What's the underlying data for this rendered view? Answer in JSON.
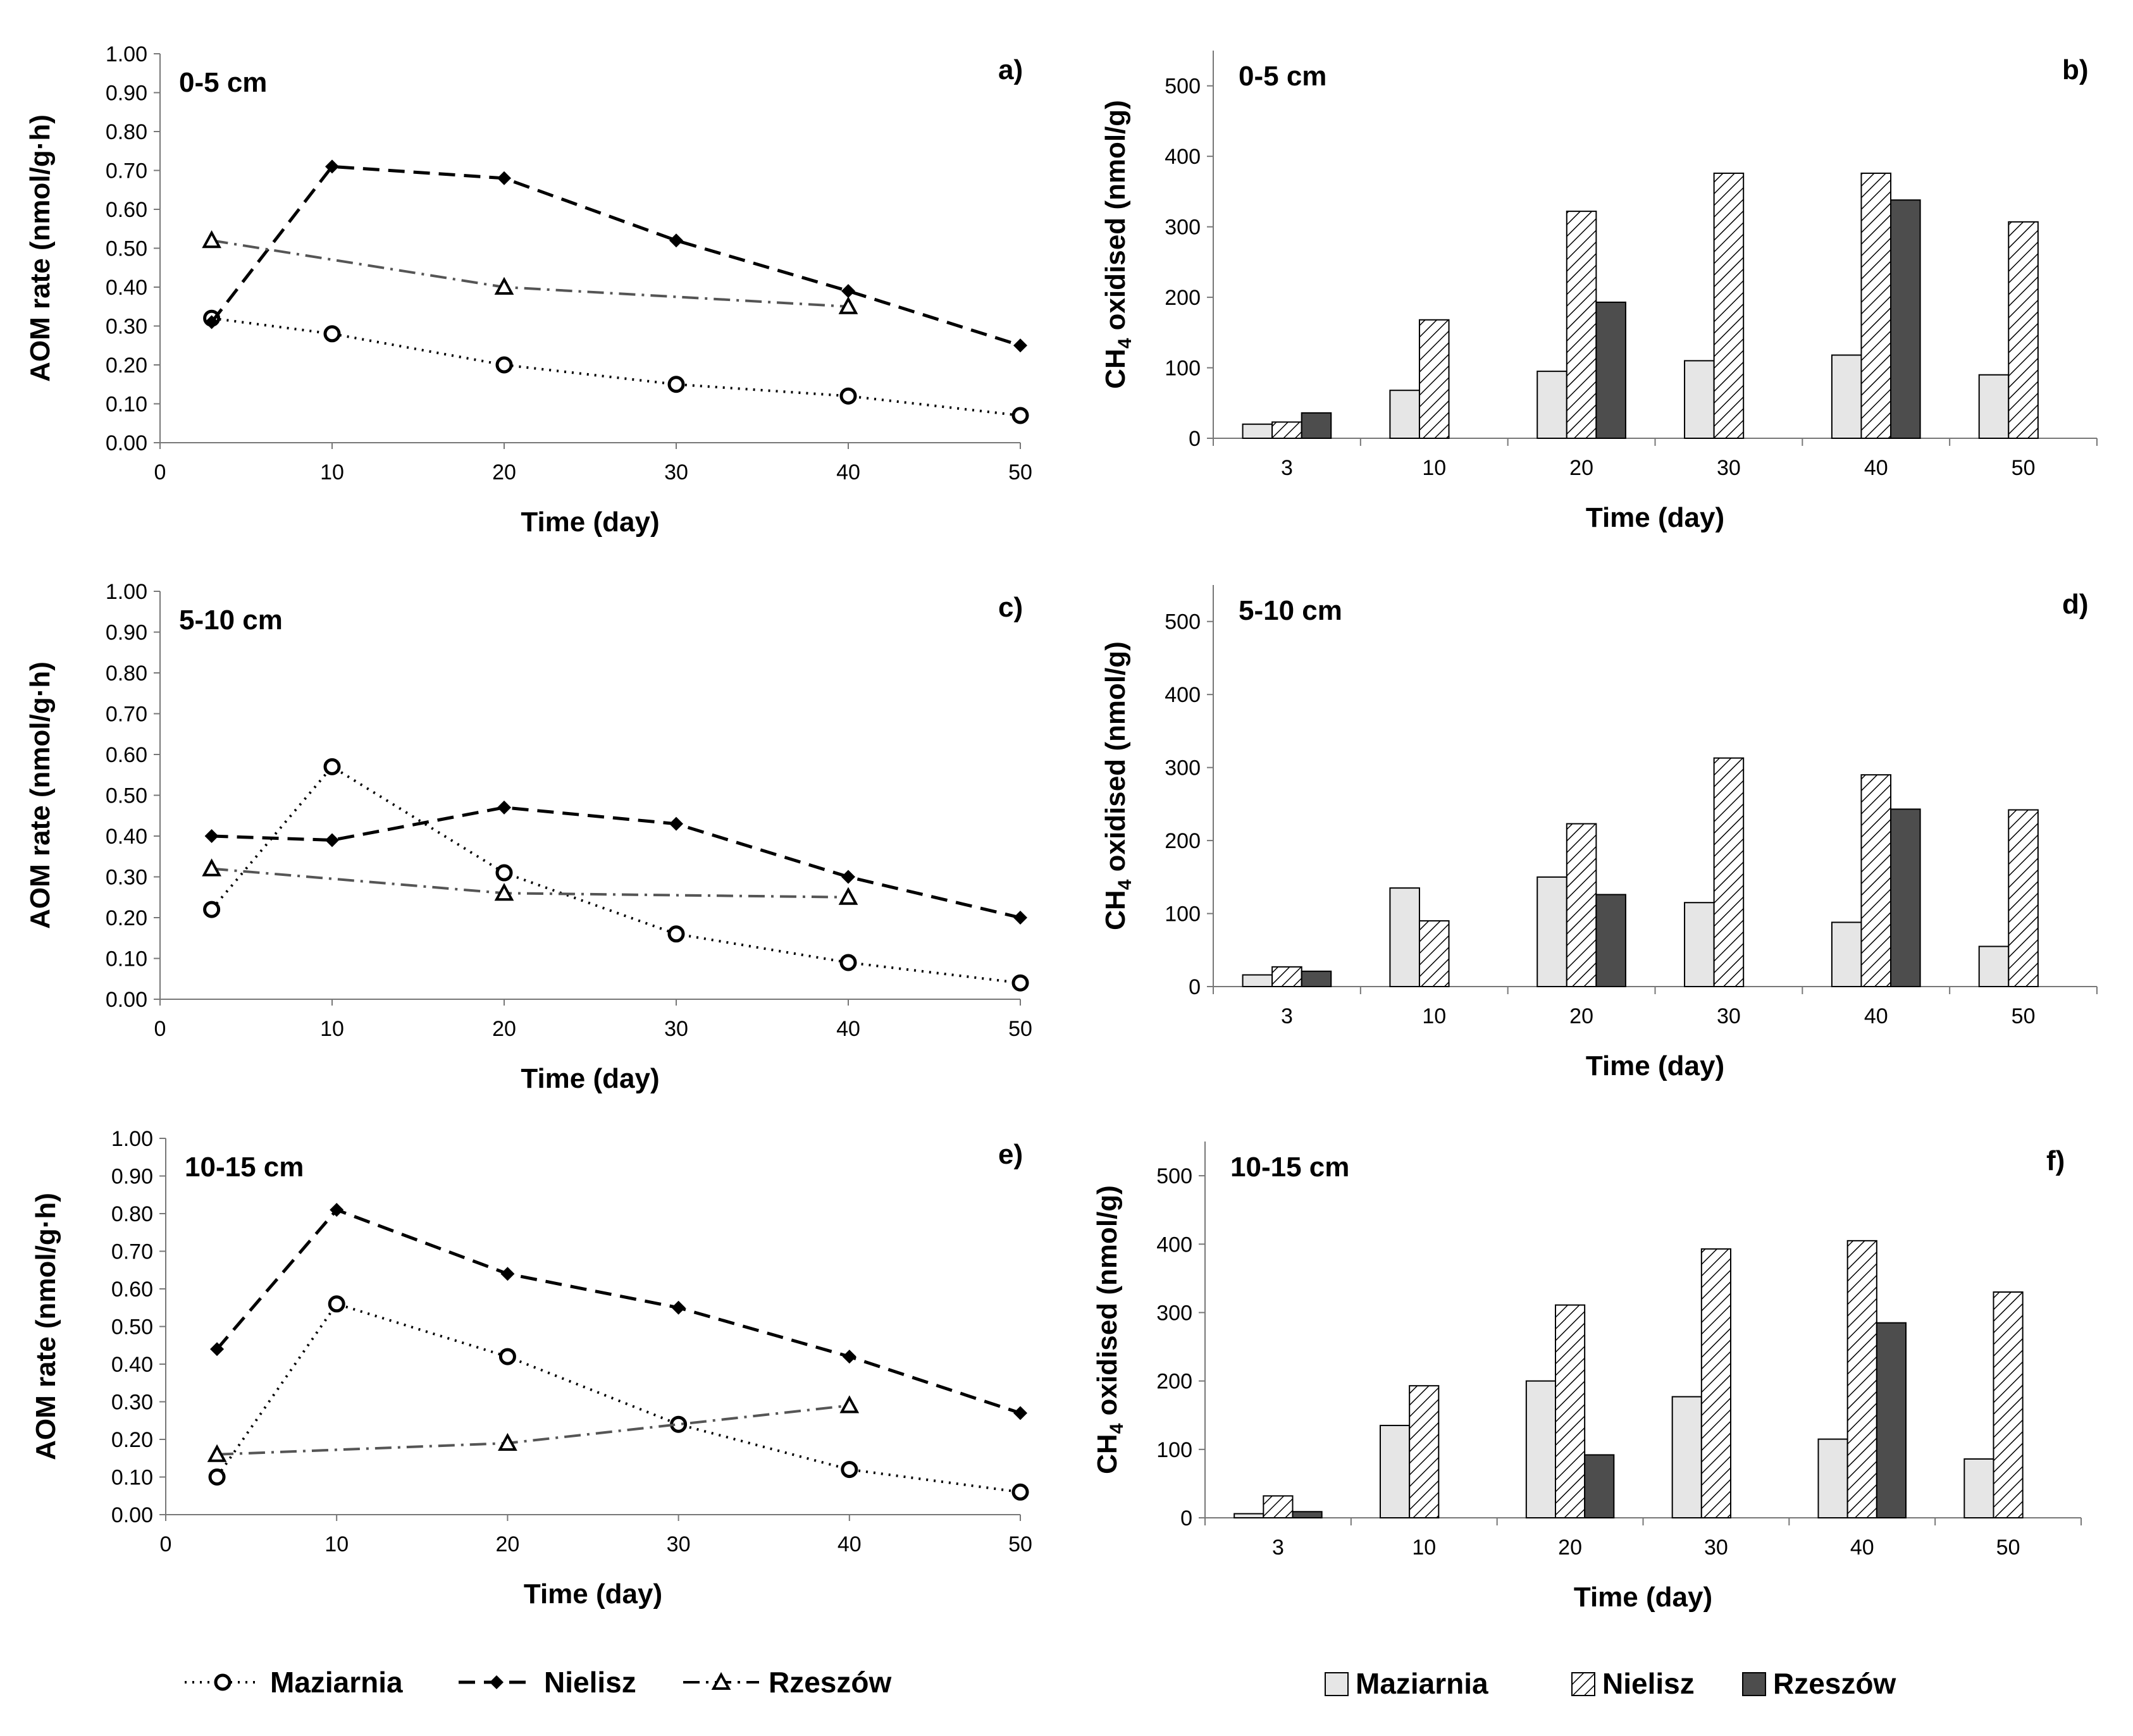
{
  "figure": {
    "line_legend": [
      {
        "name": "Maziarnia",
        "marker": "circle",
        "dash": "dot"
      },
      {
        "name": "Nielisz",
        "marker": "diamond",
        "dash": "dash"
      },
      {
        "name": "Rzeszów",
        "marker": "triangle",
        "dash": "dashdot"
      }
    ],
    "bar_legend": [
      {
        "name": "Maziarnia",
        "fill": "light"
      },
      {
        "name": "Nielisz",
        "fill": "hatch"
      },
      {
        "name": "Rzeszów",
        "fill": "dark"
      }
    ],
    "colors": {
      "light_bar": "#e6e6e6",
      "dark_bar": "#4d4d4d",
      "line": "#000000",
      "rzeszow_line": "#555555"
    }
  },
  "chart_data": [
    {
      "id": "a",
      "panel_label": "a)",
      "depth": "0-5 cm",
      "type": "line",
      "xlabel": "Time (day)",
      "ylabel": "AOM rate (nmol/g·h)",
      "xlim": [
        0,
        50
      ],
      "ylim": [
        0,
        1
      ],
      "xticks": [
        "0",
        "10",
        "20",
        "30",
        "40",
        "50"
      ],
      "yticks": [
        "0.00",
        "0.10",
        "0.20",
        "0.30",
        "0.40",
        "0.50",
        "0.60",
        "0.70",
        "0.80",
        "0.90",
        "1.00"
      ],
      "series": [
        {
          "name": "Maziarnia",
          "x": [
            3,
            10,
            20,
            30,
            40,
            50
          ],
          "values": [
            0.32,
            0.28,
            0.2,
            0.15,
            0.12,
            0.07
          ]
        },
        {
          "name": "Nielisz",
          "x": [
            3,
            10,
            20,
            30,
            40,
            50
          ],
          "values": [
            0.31,
            0.71,
            0.68,
            0.52,
            0.39,
            0.25
          ]
        },
        {
          "name": "Rzeszów",
          "x": [
            3,
            20,
            40
          ],
          "values": [
            0.52,
            0.4,
            0.35
          ]
        }
      ]
    },
    {
      "id": "b",
      "panel_label": "b)",
      "depth": "0-5 cm",
      "type": "bar",
      "xlabel": "Time (day)",
      "ylabel": "CH4 oxidised (nmol/g)",
      "ylim": [
        0,
        550
      ],
      "yticks": [
        "0",
        "100",
        "200",
        "300",
        "400",
        "500"
      ],
      "categories": [
        "3",
        "10",
        "20",
        "30",
        "40",
        "50"
      ],
      "series": [
        {
          "name": "Maziarnia",
          "values": [
            20,
            68,
            95,
            110,
            118,
            90
          ]
        },
        {
          "name": "Nielisz",
          "values": [
            23,
            168,
            322,
            376,
            376,
            307
          ]
        },
        {
          "name": "Rzeszów",
          "values": [
            36,
            null,
            193,
            null,
            338,
            null
          ]
        }
      ]
    },
    {
      "id": "c",
      "panel_label": "c)",
      "depth": "5-10 cm",
      "type": "line",
      "xlabel": "Time (day)",
      "ylabel": "AOM rate (nmol/g·h)",
      "xlim": [
        0,
        50
      ],
      "ylim": [
        0,
        1
      ],
      "xticks": [
        "0",
        "10",
        "20",
        "30",
        "40",
        "50"
      ],
      "yticks": [
        "0.00",
        "0.10",
        "0.20",
        "0.30",
        "0.40",
        "0.50",
        "0.60",
        "0.70",
        "0.80",
        "0.90",
        "1.00"
      ],
      "series": [
        {
          "name": "Maziarnia",
          "x": [
            3,
            10,
            20,
            30,
            40,
            50
          ],
          "values": [
            0.22,
            0.57,
            0.31,
            0.16,
            0.09,
            0.04
          ]
        },
        {
          "name": "Nielisz",
          "x": [
            3,
            10,
            20,
            30,
            40,
            50
          ],
          "values": [
            0.4,
            0.39,
            0.47,
            0.43,
            0.3,
            0.2
          ]
        },
        {
          "name": "Rzeszów",
          "x": [
            3,
            20,
            40
          ],
          "values": [
            0.32,
            0.26,
            0.25
          ]
        }
      ]
    },
    {
      "id": "d",
      "panel_label": "d)",
      "depth": "5-10 cm",
      "type": "bar",
      "xlabel": "Time (day)",
      "ylabel": "CH4 oxidised (nmol/g)",
      "ylim": [
        0,
        550
      ],
      "yticks": [
        "0",
        "100",
        "200",
        "300",
        "400",
        "500"
      ],
      "categories": [
        "3",
        "10",
        "20",
        "30",
        "40",
        "50"
      ],
      "series": [
        {
          "name": "Maziarnia",
          "values": [
            16,
            135,
            150,
            115,
            88,
            55
          ]
        },
        {
          "name": "Nielisz",
          "values": [
            27,
            90,
            223,
            313,
            290,
            242
          ]
        },
        {
          "name": "Rzeszów",
          "values": [
            21,
            null,
            126,
            null,
            243,
            null
          ]
        }
      ]
    },
    {
      "id": "e",
      "panel_label": "e)",
      "depth": "10-15 cm",
      "type": "line",
      "xlabel": "Time (day)",
      "ylabel": "AOM rate (nmol/g·h)",
      "xlim": [
        0,
        50
      ],
      "ylim": [
        0,
        1
      ],
      "xticks": [
        "0",
        "10",
        "20",
        "30",
        "40",
        "50"
      ],
      "yticks": [
        "0.00",
        "0.10",
        "0.20",
        "0.30",
        "0.40",
        "0.50",
        "0.60",
        "0.70",
        "0.80",
        "0.90",
        "1.00"
      ],
      "series": [
        {
          "name": "Maziarnia",
          "x": [
            3,
            10,
            20,
            30,
            40,
            50
          ],
          "values": [
            0.1,
            0.56,
            0.42,
            0.24,
            0.12,
            0.06
          ]
        },
        {
          "name": "Nielisz",
          "x": [
            3,
            10,
            20,
            30,
            40,
            50
          ],
          "values": [
            0.44,
            0.81,
            0.64,
            0.55,
            0.42,
            0.27
          ]
        },
        {
          "name": "Rzeszów",
          "x": [
            3,
            20,
            40
          ],
          "values": [
            0.16,
            0.19,
            0.29
          ]
        }
      ]
    },
    {
      "id": "f",
      "panel_label": "f)",
      "depth": "10-15 cm",
      "type": "bar",
      "xlabel": "Time (day)",
      "ylabel": "CH4 oxidised (nmol/g)",
      "ylim": [
        0,
        550
      ],
      "yticks": [
        "0",
        "100",
        "200",
        "300",
        "400",
        "500"
      ],
      "categories": [
        "3",
        "10",
        "20",
        "30",
        "40",
        "50"
      ],
      "series": [
        {
          "name": "Maziarnia",
          "values": [
            6,
            135,
            200,
            177,
            115,
            86
          ]
        },
        {
          "name": "Nielisz",
          "values": [
            32,
            193,
            311,
            393,
            405,
            330
          ]
        },
        {
          "name": "Rzeszów",
          "values": [
            9,
            null,
            92,
            null,
            285,
            null
          ]
        }
      ]
    }
  ]
}
